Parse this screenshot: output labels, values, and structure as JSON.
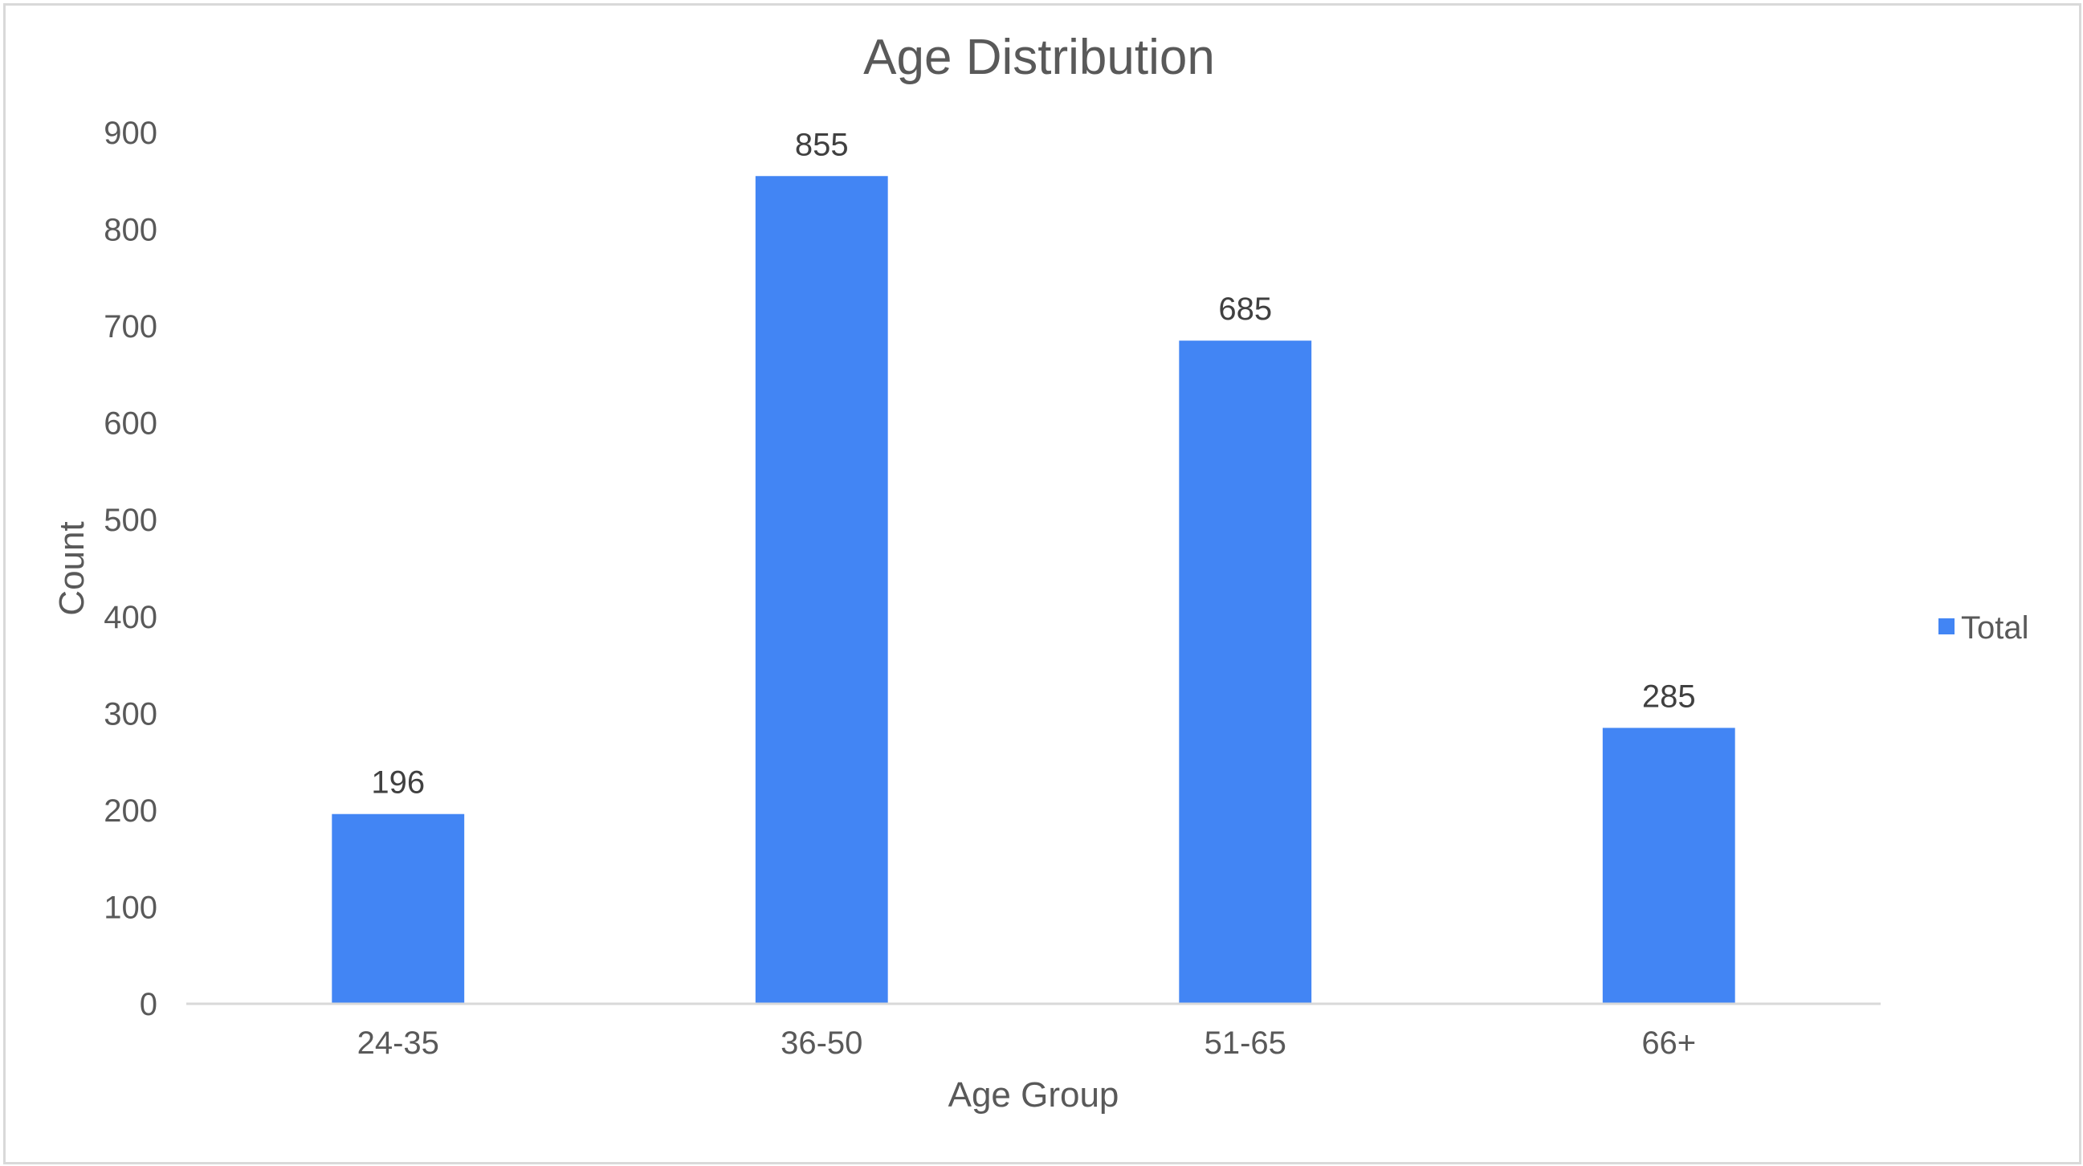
{
  "chart_data": {
    "type": "bar",
    "title": "Age Distribution",
    "xlabel": "Age Group",
    "ylabel": "Count",
    "categories": [
      "24-35",
      "36-50",
      "51-65",
      "66+"
    ],
    "series": [
      {
        "name": "Total",
        "values": [
          196,
          855,
          685,
          285
        ]
      }
    ],
    "data_labels": [
      "196",
      "855",
      "685",
      "285"
    ],
    "ylim": [
      0,
      900
    ],
    "yticks": [
      0,
      100,
      200,
      300,
      400,
      500,
      600,
      700,
      800,
      900
    ],
    "grid": false,
    "legend_position": "right",
    "colors": {
      "bar": "#4285f4",
      "text": "#595959",
      "label_text": "#404040",
      "axis": "#d9d9d9"
    }
  }
}
